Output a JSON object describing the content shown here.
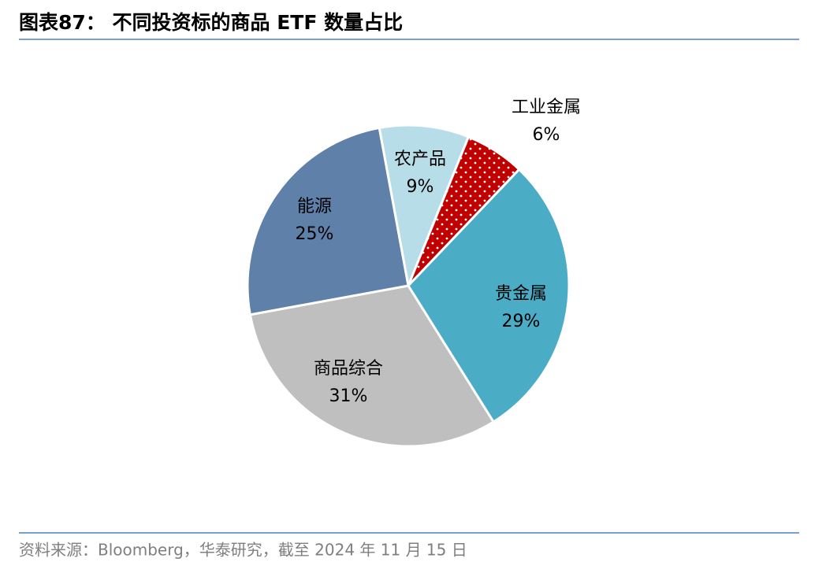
{
  "chart_data": {
    "type": "pie",
    "title": "图表87： 不同投资标的商品 ETF 数量占比",
    "source": "资料来源：Bloomberg，华泰研究，截至 2024 年 11 月 15 日",
    "categories": [
      "农产品",
      "工业金属",
      "贵金属",
      "商品综合",
      "能源"
    ],
    "values": [
      9,
      6,
      29,
      31,
      25
    ],
    "value_labels": [
      "9%",
      "6%",
      "29%",
      "31%",
      "25%"
    ],
    "colors": [
      "#b7dde8",
      "#c00000",
      "#4bacc6",
      "#bfbfbf",
      "#5f80a9"
    ],
    "patterned": [
      false,
      true,
      false,
      false,
      false
    ]
  }
}
